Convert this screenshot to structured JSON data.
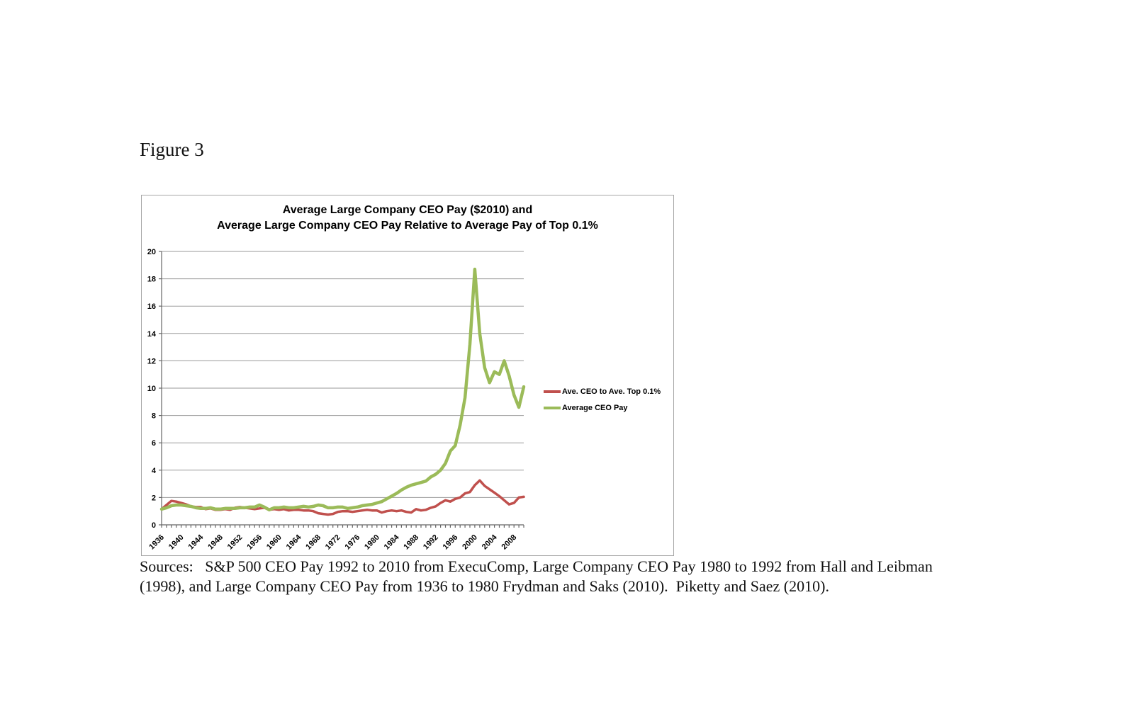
{
  "page": {
    "figure_label": "Figure 3",
    "sources_line1": "Sources:   S&P 500 CEO Pay 1992 to 2010 from ExecuComp, Large Company CEO Pay 1980 to 1992 from Hall and Leibman",
    "sources_line2": "(1998), and Large Company CEO Pay from 1936 to 1980 Frydman and Saks (2010).  Piketty and Saez (2010)."
  },
  "chart": {
    "title_line1": "Average Large Company CEO Pay ($2010) and",
    "title_line2": "Average Large Company CEO Pay Relative to Average Pay of Top 0.1%",
    "legend": {
      "entries": [
        {
          "label": "Ave. CEO to Ave. Top 0.1%",
          "color": "#C0504D"
        },
        {
          "label": "Average CEO Pay",
          "color": "#9BBB59"
        }
      ]
    },
    "colors": {
      "gridline": "#9a9a9a",
      "axis": "#666666",
      "background": "#ffffff"
    }
  },
  "chart_data": {
    "type": "line",
    "title": "Average Large Company CEO Pay ($2010) and Average Large Company CEO Pay Relative to Average Pay of Top 0.1%",
    "ylim": [
      0,
      20
    ],
    "ytick_step": 2,
    "grid": true,
    "legend_position": "center-right",
    "x": [
      1936,
      1937,
      1938,
      1939,
      1940,
      1941,
      1942,
      1943,
      1944,
      1945,
      1946,
      1947,
      1948,
      1949,
      1950,
      1951,
      1952,
      1953,
      1954,
      1955,
      1956,
      1957,
      1958,
      1959,
      1960,
      1961,
      1962,
      1963,
      1964,
      1965,
      1966,
      1967,
      1968,
      1969,
      1970,
      1971,
      1972,
      1973,
      1974,
      1975,
      1976,
      1977,
      1978,
      1979,
      1980,
      1981,
      1982,
      1983,
      1984,
      1985,
      1986,
      1987,
      1988,
      1989,
      1990,
      1991,
      1992,
      1993,
      1994,
      1995,
      1996,
      1997,
      1998,
      1999,
      2000,
      2001,
      2002,
      2003,
      2004,
      2005,
      2006,
      2007,
      2008,
      2009,
      2010
    ],
    "xtick_labels": [
      "1936",
      "1940",
      "1944",
      "1948",
      "1952",
      "1956",
      "1960",
      "1964",
      "1968",
      "1972",
      "1976",
      "1980",
      "1984",
      "1988",
      "1992",
      "1996",
      "2000",
      "2004",
      "2008"
    ],
    "series": [
      {
        "name": "Ave. CEO to Ave. Top 0.1%",
        "color": "#C0504D",
        "values": [
          1.15,
          1.45,
          1.75,
          1.7,
          1.6,
          1.5,
          1.35,
          1.3,
          1.3,
          1.15,
          1.2,
          1.1,
          1.1,
          1.15,
          1.1,
          1.25,
          1.3,
          1.25,
          1.2,
          1.15,
          1.2,
          1.25,
          1.1,
          1.15,
          1.1,
          1.15,
          1.05,
          1.1,
          1.1,
          1.05,
          1.05,
          1.0,
          0.85,
          0.8,
          0.75,
          0.8,
          0.95,
          1.0,
          1.0,
          0.95,
          1.0,
          1.05,
          1.1,
          1.05,
          1.05,
          0.9,
          1.0,
          1.05,
          1.0,
          1.05,
          0.95,
          0.9,
          1.15,
          1.05,
          1.1,
          1.25,
          1.35,
          1.6,
          1.8,
          1.7,
          1.9,
          2.0,
          2.3,
          2.4,
          2.9,
          3.25,
          2.85,
          2.6,
          2.35,
          2.1,
          1.8,
          1.5,
          1.6,
          2.0,
          2.05
        ]
      },
      {
        "name": "Average CEO Pay",
        "color": "#9BBB59",
        "values": [
          1.15,
          1.25,
          1.4,
          1.45,
          1.45,
          1.4,
          1.35,
          1.25,
          1.2,
          1.2,
          1.25,
          1.15,
          1.15,
          1.2,
          1.2,
          1.2,
          1.25,
          1.25,
          1.3,
          1.3,
          1.45,
          1.3,
          1.1,
          1.25,
          1.25,
          1.3,
          1.25,
          1.25,
          1.3,
          1.35,
          1.3,
          1.35,
          1.45,
          1.4,
          1.25,
          1.25,
          1.3,
          1.3,
          1.2,
          1.25,
          1.3,
          1.4,
          1.45,
          1.5,
          1.6,
          1.7,
          1.9,
          2.1,
          2.3,
          2.55,
          2.75,
          2.9,
          3.0,
          3.1,
          3.2,
          3.5,
          3.7,
          4.0,
          4.5,
          5.4,
          5.8,
          7.3,
          9.3,
          13.2,
          18.7,
          14.0,
          11.5,
          10.4,
          11.2,
          11.0,
          12.0,
          10.9,
          9.5,
          8.6,
          10.1
        ]
      }
    ]
  }
}
